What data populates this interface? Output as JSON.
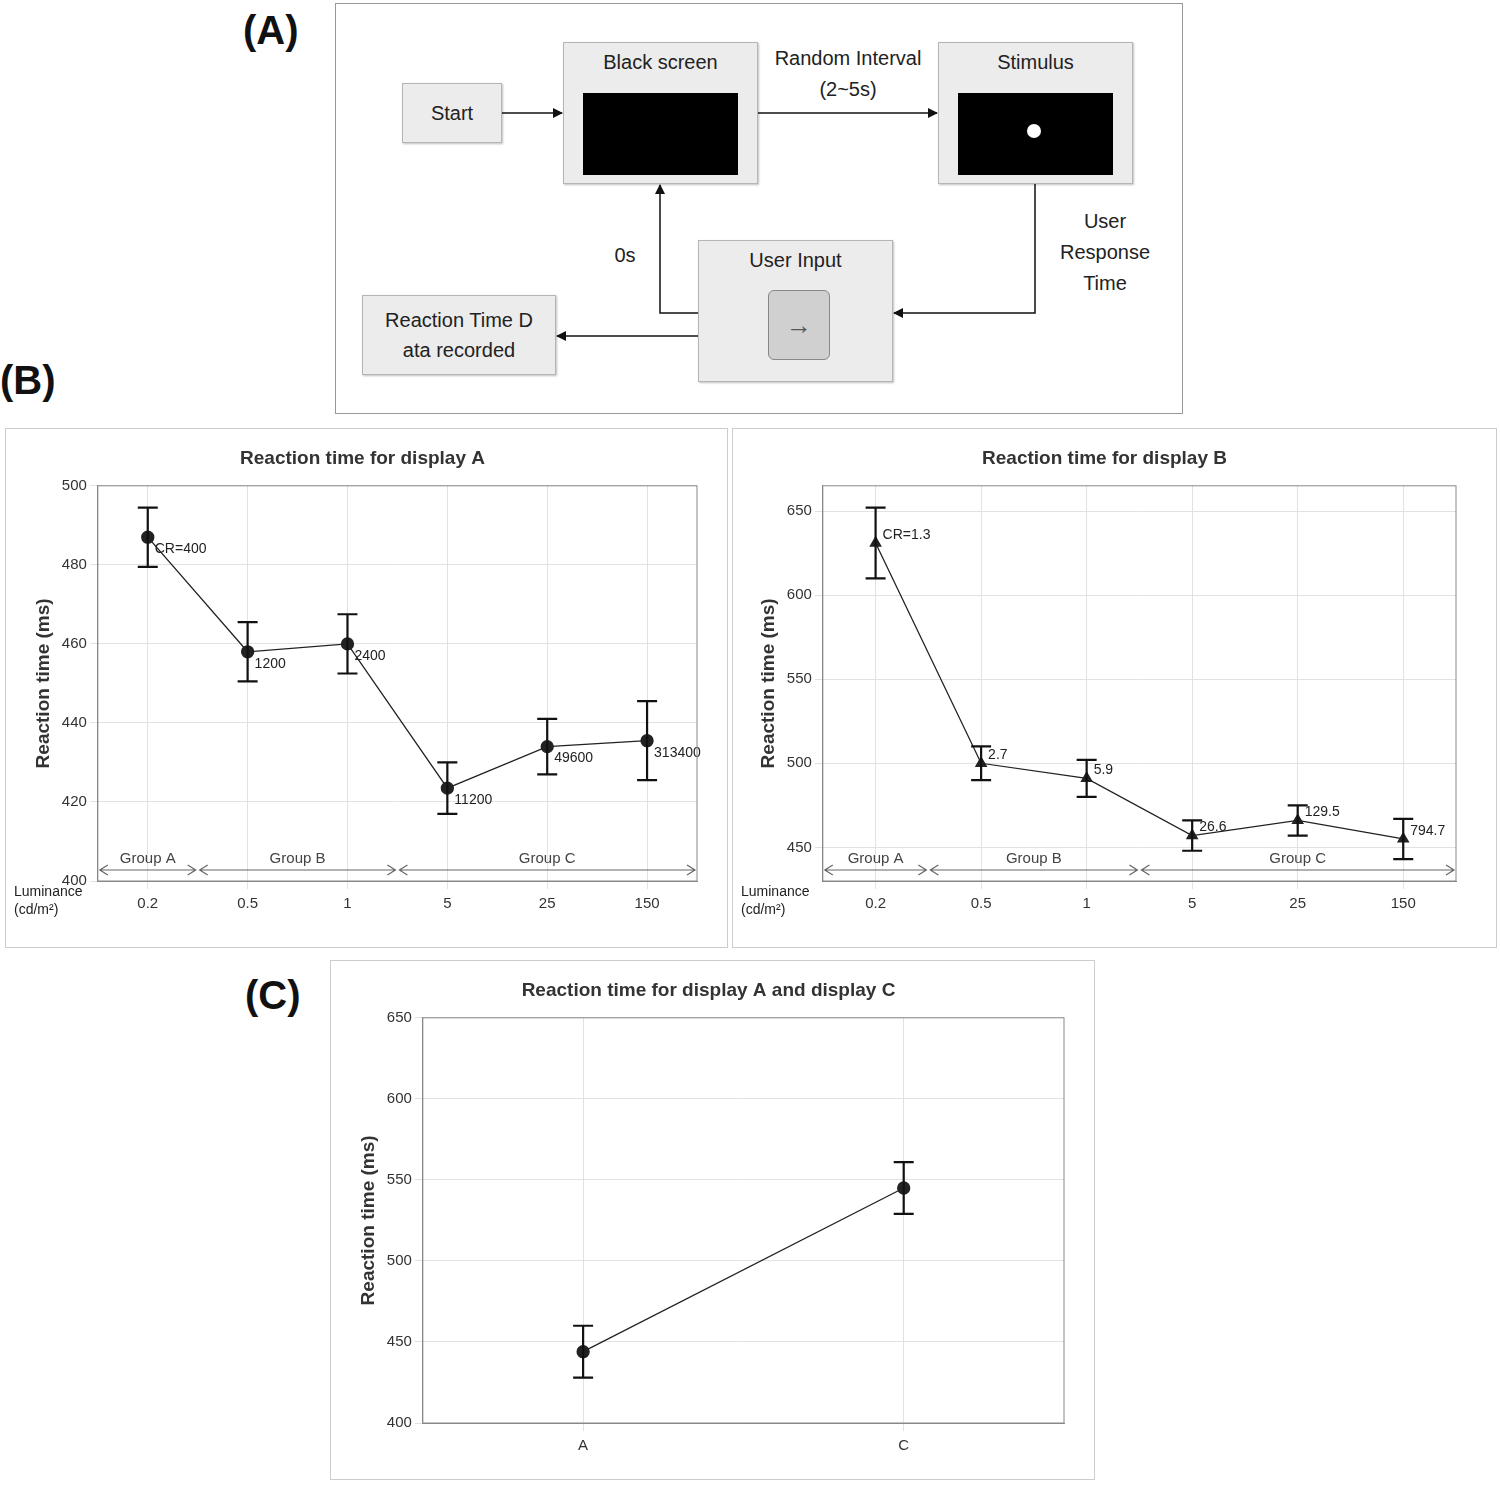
{
  "panel_labels": [
    "(A)",
    "(B)",
    "(C)"
  ],
  "diagram": {
    "nodes": {
      "start": "Start",
      "black_screen": "Black screen",
      "stimulus": "Stimulus",
      "user_input": "User Input",
      "button": "→",
      "record": [
        "Reaction Time D",
        "ata recorded"
      ]
    },
    "edge_labels": {
      "interval": [
        "Random Interval",
        "(2~5s)"
      ],
      "response": [
        "User",
        "Response",
        "Time"
      ],
      "reset": "0s"
    }
  },
  "chart_data": [
    {
      "type": "line",
      "title": "Reaction time for display A",
      "y_label": "Reaction time (ms)",
      "x_label": [
        "Luminance",
        "(cd/m²)"
      ],
      "categories": [
        "0.2",
        "0.5",
        "1",
        "5",
        "25",
        "150"
      ],
      "values": [
        487,
        458,
        460,
        423.5,
        434,
        435.5
      ],
      "errors": [
        7.5,
        7.5,
        7.5,
        6.5,
        7,
        10
      ],
      "annotations": [
        "CR=400",
        "1200",
        "2400",
        "11200",
        "49600",
        "313400"
      ],
      "groups": [
        {
          "label": "Group A",
          "categories": [
            "0.2"
          ]
        },
        {
          "label": "Group B",
          "categories": [
            "0.5",
            "1"
          ]
        },
        {
          "label": "Group C",
          "categories": [
            "5",
            "25",
            "150"
          ]
        }
      ],
      "marker": "circle",
      "color": "#222222",
      "ylim": [
        400,
        500
      ],
      "yticks": [
        400,
        420,
        440,
        460,
        480,
        500
      ],
      "grid": true
    },
    {
      "type": "line",
      "title": "Reaction time for display B",
      "y_label": "Reaction time (ms)",
      "x_label": [
        "Luminance",
        "(cd/m²)"
      ],
      "categories": [
        "0.2",
        "0.5",
        "1",
        "5",
        "25",
        "150"
      ],
      "values": [
        631,
        500,
        491,
        457,
        466,
        455
      ],
      "errors": [
        21,
        10,
        11,
        9,
        9,
        12
      ],
      "annotations": [
        "CR=1.3",
        "2.7",
        "5.9",
        "26.6",
        "129.5",
        "794.7"
      ],
      "groups": [
        {
          "label": "Group A",
          "categories": [
            "0.2"
          ]
        },
        {
          "label": "Group B",
          "categories": [
            "0.5",
            "1"
          ]
        },
        {
          "label": "Group C",
          "categories": [
            "5",
            "25",
            "150"
          ]
        }
      ],
      "marker": "triangle",
      "color": "#222222",
      "ylim": [
        430,
        665
      ],
      "yticks": [
        450,
        500,
        550,
        600,
        650
      ],
      "grid": true
    },
    {
      "type": "line",
      "title": "Reaction time for display A and display C",
      "y_label": "Reaction time (ms)",
      "categories": [
        "A",
        "C"
      ],
      "values": [
        444,
        545
      ],
      "errors": [
        16,
        16
      ],
      "marker": "circle",
      "color": "#222222",
      "ylim": [
        400,
        650
      ],
      "yticks": [
        400,
        450,
        500,
        550,
        600,
        650
      ],
      "grid": true
    }
  ]
}
